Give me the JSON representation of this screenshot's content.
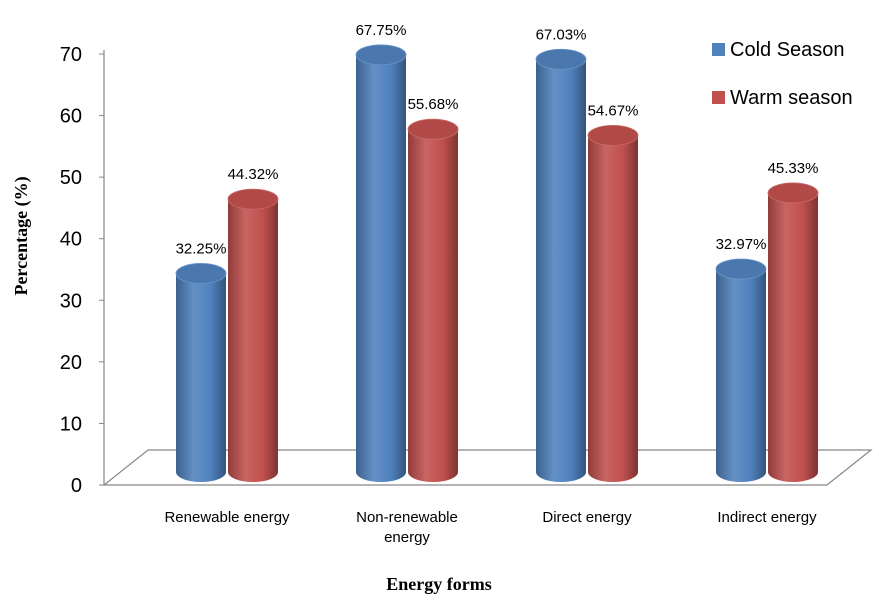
{
  "chart_data": {
    "type": "bar",
    "categories": [
      [
        "Renewable energy"
      ],
      [
        "Non-renewable",
        "energy"
      ],
      [
        "Direct energy"
      ],
      [
        "Indirect energy"
      ]
    ],
    "series": [
      {
        "name": "Cold Season",
        "color": "#4f81bd",
        "values": [
          32.25,
          67.75,
          67.03,
          32.97
        ],
        "labels": [
          "32.25%",
          "67.75%",
          "67.03%",
          "32.97%"
        ]
      },
      {
        "name": "Warm season",
        "color": "#c0504d",
        "values": [
          44.32,
          55.68,
          54.67,
          45.33
        ],
        "labels": [
          "44.32%",
          "55.68%",
          "54.67%",
          "45.33%"
        ]
      }
    ],
    "xlabel": "Energy forms",
    "ylabel": "Percentage (%)",
    "ylim": [
      0,
      70
    ],
    "yticks": [
      "0",
      "10",
      "20",
      "30",
      "40",
      "50",
      "60",
      "70"
    ],
    "legend_position": "top-right",
    "grid": false,
    "style": "3d-cylinder"
  }
}
